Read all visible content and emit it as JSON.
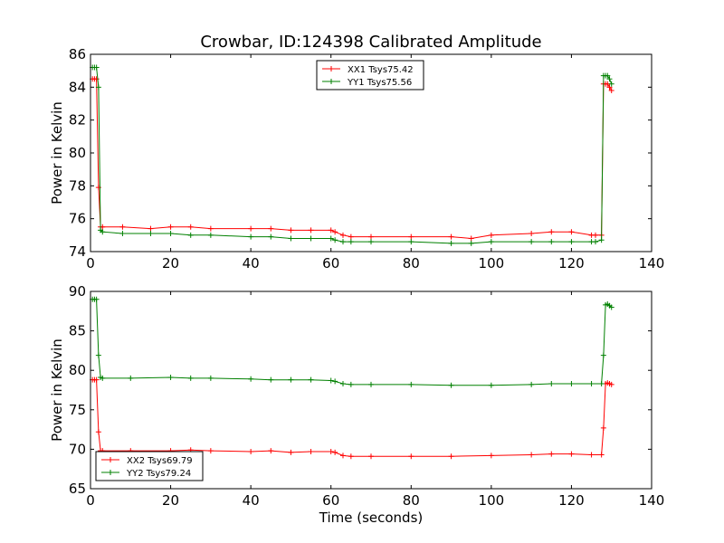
{
  "figure": {
    "title": "Crowbar, ID:124398 Calibrated Amplitude",
    "xlabel": "Time (seconds)"
  },
  "chart_data": [
    {
      "type": "line",
      "ylabel": "Power in Kelvin",
      "xlim": [
        0,
        140
      ],
      "ylim": [
        74,
        86
      ],
      "xticks": [
        "0",
        "20",
        "40",
        "60",
        "80",
        "100",
        "120",
        "140"
      ],
      "yticks": [
        "74",
        "76",
        "78",
        "80",
        "82",
        "84",
        "86"
      ],
      "legend_position": "upper-center",
      "series": [
        {
          "name": "XX1 Tsys75.42",
          "color": "#ff0000",
          "x": [
            0.5,
            1,
            1.5,
            2,
            2.5,
            3,
            8,
            15,
            20,
            25,
            30,
            40,
            45,
            50,
            55,
            60,
            61,
            63,
            65,
            70,
            80,
            90,
            95,
            100,
            110,
            115,
            120,
            125,
            126,
            127.5,
            128,
            128.5,
            129,
            129.5,
            130
          ],
          "y": [
            84.5,
            84.5,
            84.5,
            77.9,
            75.5,
            75.5,
            75.5,
            75.4,
            75.5,
            75.5,
            75.4,
            75.4,
            75.4,
            75.3,
            75.3,
            75.3,
            75.2,
            75.0,
            74.9,
            74.9,
            74.9,
            74.9,
            74.8,
            75.0,
            75.1,
            75.2,
            75.2,
            75.0,
            75.0,
            75.0,
            84.2,
            84.2,
            84.2,
            84.0,
            83.8
          ]
        },
        {
          "name": "YY1 Tsys75.56",
          "color": "#008000",
          "x": [
            0.5,
            1,
            1.5,
            2,
            2.5,
            3,
            8,
            15,
            20,
            25,
            30,
            40,
            45,
            50,
            55,
            60,
            61,
            63,
            65,
            70,
            80,
            90,
            95,
            100,
            110,
            115,
            120,
            125,
            126,
            127.5,
            128,
            128.5,
            129,
            129.5,
            130
          ],
          "y": [
            85.2,
            85.2,
            85.2,
            84.0,
            75.3,
            75.2,
            75.1,
            75.1,
            75.1,
            75.0,
            75.0,
            74.9,
            74.9,
            74.8,
            74.8,
            74.8,
            74.7,
            74.6,
            74.6,
            74.6,
            74.6,
            74.5,
            74.5,
            74.6,
            74.6,
            74.6,
            74.6,
            74.6,
            74.6,
            74.7,
            84.7,
            84.7,
            84.7,
            84.5,
            84.2
          ]
        }
      ]
    },
    {
      "type": "line",
      "ylabel": "Power in Kelvin",
      "xlabel": "Time (seconds)",
      "xlim": [
        0,
        140
      ],
      "ylim": [
        65,
        90
      ],
      "xticks": [
        "0",
        "20",
        "40",
        "60",
        "80",
        "100",
        "120",
        "140"
      ],
      "yticks": [
        "65",
        "70",
        "75",
        "80",
        "85",
        "90"
      ],
      "legend_position": "lower-left",
      "series": [
        {
          "name": "XX2 Tsys69.79",
          "color": "#ff0000",
          "x": [
            0.5,
            1,
            1.5,
            2,
            2.5,
            3,
            10,
            20,
            25,
            30,
            40,
            45,
            50,
            55,
            60,
            61,
            63,
            65,
            70,
            80,
            90,
            100,
            110,
            115,
            120,
            125,
            127.5,
            128,
            128.5,
            129,
            129.5,
            130
          ],
          "y": [
            78.8,
            78.8,
            78.8,
            72.2,
            69.8,
            69.8,
            69.8,
            69.8,
            69.9,
            69.8,
            69.7,
            69.8,
            69.6,
            69.7,
            69.7,
            69.6,
            69.2,
            69.1,
            69.1,
            69.1,
            69.1,
            69.2,
            69.3,
            69.4,
            69.4,
            69.3,
            69.3,
            72.7,
            78.3,
            78.4,
            78.3,
            78.2
          ]
        },
        {
          "name": "YY2 Tsys79.24",
          "color": "#008000",
          "x": [
            0.5,
            1,
            1.5,
            2,
            2.5,
            3,
            10,
            20,
            25,
            30,
            40,
            45,
            50,
            55,
            60,
            61,
            63,
            65,
            70,
            80,
            90,
            100,
            110,
            115,
            120,
            125,
            127.5,
            128,
            128.5,
            129,
            129.5,
            130
          ],
          "y": [
            89.0,
            89.0,
            89.0,
            81.9,
            79.1,
            79.0,
            79.0,
            79.1,
            79.0,
            79.0,
            78.9,
            78.8,
            78.8,
            78.8,
            78.7,
            78.6,
            78.3,
            78.2,
            78.2,
            78.2,
            78.1,
            78.1,
            78.2,
            78.3,
            78.3,
            78.3,
            78.3,
            81.9,
            88.3,
            88.4,
            88.2,
            88.0
          ]
        }
      ]
    }
  ]
}
